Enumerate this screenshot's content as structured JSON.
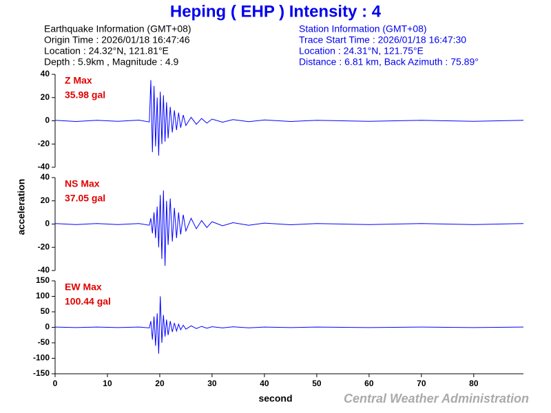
{
  "header": {
    "title": "Heping ( EHP ) Intensity : 4",
    "left": [
      "Earthquake Information  (GMT+08)",
      "Origin Time : 2026/01/18 16:47:46",
      "Location : 24.32°N, 121.81°E",
      "Depth : 5.9km , Magnitude : 4.9"
    ],
    "right": [
      "Station Information  (GMT+08)",
      "Trace Start Time : 2026/01/18 16:47:30",
      "Location : 24.31°N, 121.75°E",
      "Distance : 6.81 km, Back Azimuth : 75.89°"
    ]
  },
  "chart_data": [
    {
      "type": "line",
      "component": "Z Max",
      "max_label": "35.98 gal",
      "color": "#0000ff",
      "x": [
        0,
        4,
        8,
        12,
        16,
        18,
        18.3,
        18.6,
        18.9,
        19.2,
        19.5,
        19.8,
        20.1,
        20.4,
        20.7,
        21,
        21.3,
        21.6,
        22,
        22.4,
        22.8,
        23.2,
        23.6,
        24,
        24.5,
        25,
        26,
        27,
        28,
        29,
        30,
        32,
        34,
        37,
        40,
        45,
        50,
        60,
        70,
        80,
        89.5
      ],
      "values": [
        0.5,
        -0.6,
        0.5,
        -0.5,
        0.6,
        -1,
        35,
        -27,
        30,
        -22,
        20,
        -30,
        25,
        -20,
        22,
        -18,
        16,
        -15,
        12,
        -10,
        9,
        -8,
        7,
        -6,
        5,
        -4,
        3,
        -3,
        2,
        -2,
        1.5,
        -1.2,
        1,
        -0.8,
        0.7,
        -0.6,
        0.5,
        -0.5,
        0.5,
        -0.5,
        0.4
      ],
      "xlim": [
        0,
        89.5
      ],
      "ylim": [
        -40,
        40
      ],
      "yticks": [
        -40,
        -20,
        0,
        20,
        40
      ]
    },
    {
      "type": "line",
      "component": "NS Max",
      "max_label": "37.05 gal",
      "color": "#0000ff",
      "ylabel": "acceleration",
      "x": [
        0,
        4,
        8,
        12,
        16,
        18,
        18.3,
        18.6,
        18.9,
        19.2,
        19.5,
        19.8,
        20.1,
        20.4,
        20.7,
        21,
        21.3,
        21.6,
        22,
        22.4,
        22.8,
        23.2,
        23.6,
        24,
        24.5,
        25,
        26,
        27,
        28,
        29,
        30,
        32,
        34,
        37,
        40,
        45,
        50,
        60,
        70,
        80,
        89.5
      ],
      "values": [
        0.5,
        -0.5,
        0.5,
        -0.5,
        0.5,
        -1,
        5,
        -8,
        10,
        -12,
        15,
        -20,
        25,
        -30,
        29,
        -36,
        20,
        -18,
        22,
        -15,
        14,
        -12,
        10,
        -9,
        8,
        -6,
        5,
        -4,
        3,
        -3,
        2,
        -1.5,
        1.2,
        -1,
        0.8,
        -0.6,
        0.5,
        -0.5,
        0.5,
        -0.5,
        0.4
      ],
      "xlim": [
        0,
        89.5
      ],
      "ylim": [
        -40,
        40
      ],
      "yticks": [
        -40,
        -20,
        0,
        20,
        40
      ]
    },
    {
      "type": "line",
      "component": "EW Max",
      "max_label": "100.44 gal",
      "color": "#0000ff",
      "xlabel": "second",
      "x": [
        0,
        4,
        8,
        12,
        16,
        18,
        18.3,
        18.6,
        18.9,
        19.2,
        19.5,
        19.8,
        20.1,
        20.4,
        20.7,
        21,
        21.3,
        21.6,
        22,
        22.4,
        22.8,
        23.2,
        23.6,
        24,
        24.5,
        25,
        26,
        27,
        28,
        29,
        30,
        32,
        34,
        37,
        40,
        45,
        50,
        60,
        70,
        80,
        89.5
      ],
      "values": [
        1,
        -1,
        1,
        -1,
        1,
        -2,
        20,
        -40,
        35,
        -60,
        45,
        -85,
        100,
        -50,
        40,
        -30,
        25,
        -25,
        20,
        -15,
        14,
        -12,
        10,
        -8,
        7,
        -6,
        5,
        -4,
        3,
        -3,
        2,
        -2,
        1.5,
        -1.5,
        1,
        -1,
        1,
        -1,
        1,
        -1,
        1
      ],
      "xlim": [
        0,
        89.5
      ],
      "ylim": [
        -150,
        150
      ],
      "yticks": [
        -150,
        -100,
        -50,
        0,
        50,
        100,
        150
      ],
      "xticks": [
        0,
        10,
        20,
        30,
        40,
        50,
        60,
        70,
        80
      ]
    }
  ],
  "footer": "Central Weather Administration"
}
